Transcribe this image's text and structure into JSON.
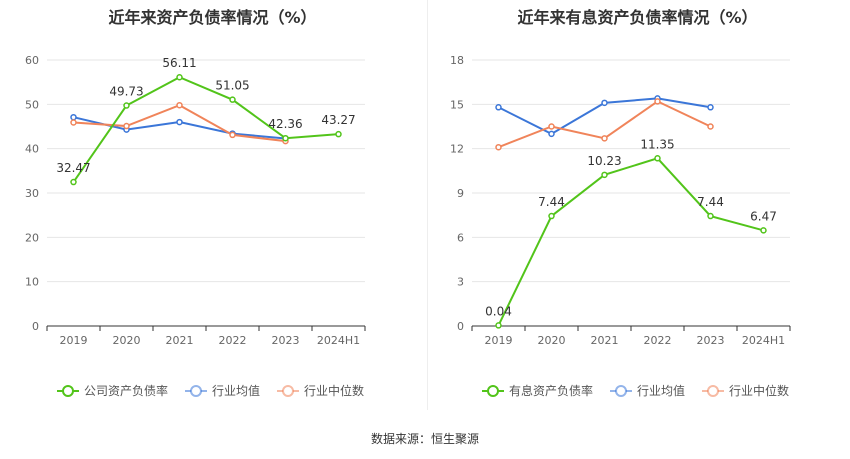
{
  "chart_data": [
    {
      "type": "line",
      "title": "近年来资产负债率情况（%）",
      "categories": [
        "2019",
        "2020",
        "2021",
        "2022",
        "2023",
        "2024H1"
      ],
      "ylim": [
        0,
        60
      ],
      "yticks": [
        0,
        10,
        20,
        30,
        40,
        50,
        60
      ],
      "grid": true,
      "legend_position": "bottom",
      "series": [
        {
          "name": "公司资产负债率",
          "color": "#52c41a",
          "values": [
            32.47,
            49.73,
            56.11,
            51.05,
            42.36,
            43.27
          ],
          "labels": [
            "32.47",
            "49.73",
            "56.11",
            "51.05",
            "42.36",
            "43.27"
          ]
        },
        {
          "name": "行业均值",
          "color": "#3b76d8",
          "values": [
            47.1,
            44.3,
            46.0,
            43.4,
            42.3,
            null
          ]
        },
        {
          "name": "行业中位数",
          "color": "#f0845a",
          "values": [
            45.9,
            45.1,
            49.8,
            43.1,
            41.7,
            null
          ]
        }
      ]
    },
    {
      "type": "line",
      "title": "近年来有息资产负债率情况（%）",
      "categories": [
        "2019",
        "2020",
        "2021",
        "2022",
        "2023",
        "2024H1"
      ],
      "ylim": [
        0,
        18
      ],
      "yticks": [
        0,
        3,
        6,
        9,
        12,
        15,
        18
      ],
      "grid": true,
      "legend_position": "bottom",
      "series": [
        {
          "name": "有息资产负债率",
          "color": "#52c41a",
          "values": [
            0.04,
            7.44,
            10.23,
            11.35,
            7.44,
            6.47
          ],
          "labels": [
            "0.04",
            "7.44",
            "10.23",
            "11.35",
            "7.44",
            "6.47"
          ]
        },
        {
          "name": "行业均值",
          "color": "#3b76d8",
          "values": [
            14.8,
            13.0,
            15.1,
            15.4,
            14.8,
            null
          ]
        },
        {
          "name": "行业中位数",
          "color": "#f0845a",
          "values": [
            12.1,
            13.5,
            12.7,
            15.2,
            13.5,
            null
          ]
        }
      ]
    }
  ],
  "footer": {
    "source": "数据来源：恒生聚源"
  },
  "colors": {
    "grid": "#e6e6e6",
    "axis": "#333333",
    "tick_text": "#666666"
  }
}
